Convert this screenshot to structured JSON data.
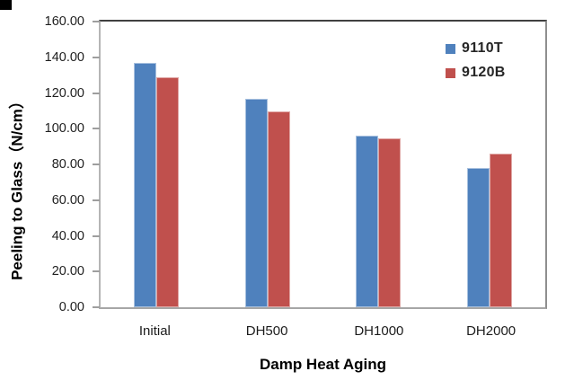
{
  "chart_data": {
    "type": "bar",
    "title": "",
    "xlabel": "Damp Heat Aging",
    "ylabel": "Peeling to Glass（N/cm）",
    "categories": [
      "Initial",
      "DH500",
      "DH1000",
      "DH2000"
    ],
    "series": [
      {
        "name": "9110T",
        "color": "#4F81BD",
        "values": [
          137.0,
          116.5,
          96.0,
          78.0
        ]
      },
      {
        "name": "9120B",
        "color": "#C0504D",
        "values": [
          129.0,
          109.5,
          94.5,
          86.0
        ]
      }
    ],
    "ylim": [
      0,
      160
    ],
    "ytick_step": 20,
    "ytick_labels": [
      "0.00",
      "20.00",
      "40.00",
      "60.00",
      "80.00",
      "100.00",
      "120.00",
      "140.00",
      "160.00"
    ],
    "grid": false,
    "legend_position": "top-right",
    "plot_background": "#ffffff"
  }
}
